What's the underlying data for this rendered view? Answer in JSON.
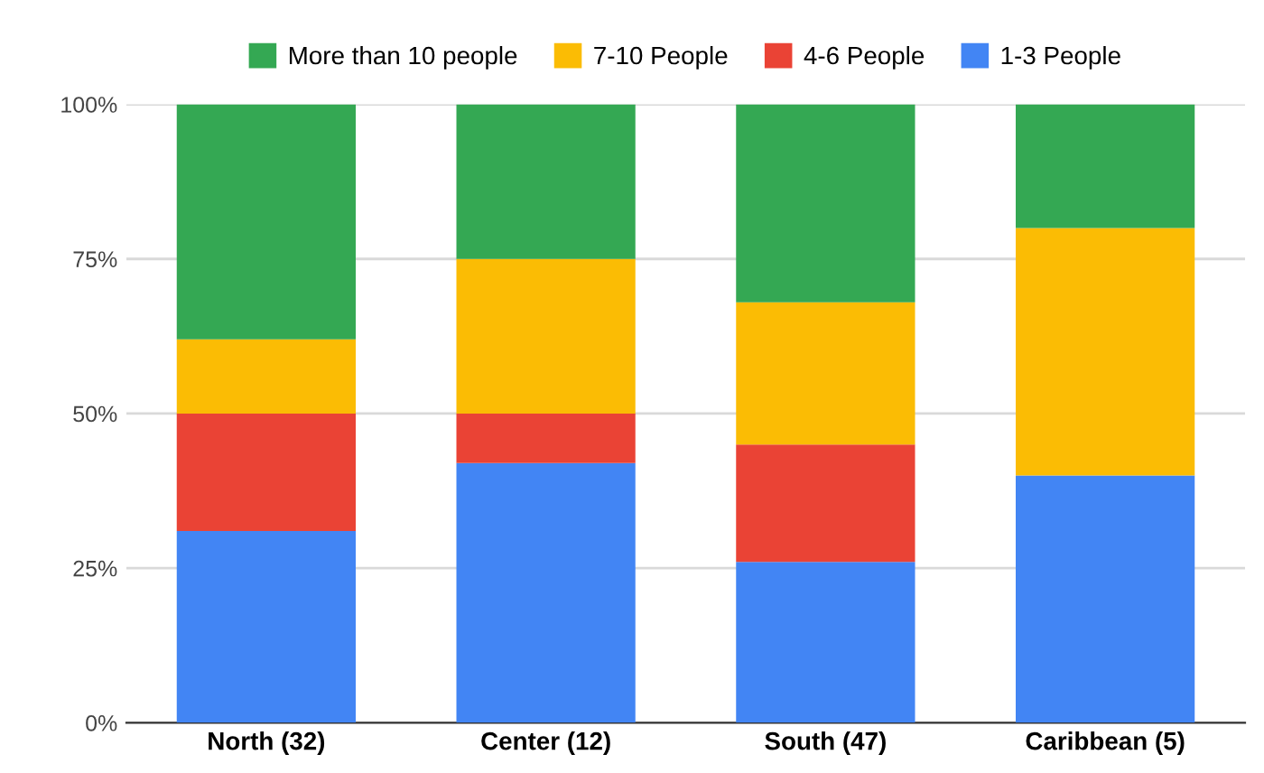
{
  "chart_data": {
    "type": "bar",
    "stacked": true,
    "categories": [
      "North (32)",
      "Center (12)",
      "South (47)",
      "Caribbean (5)"
    ],
    "series": [
      {
        "name": "1-3 People",
        "color": "#4285f4",
        "values": [
          31,
          42,
          26,
          40
        ]
      },
      {
        "name": "4-6 People",
        "color": "#ea4335",
        "values": [
          19,
          8,
          19,
          0
        ]
      },
      {
        "name": "7-10 People",
        "color": "#fbbc04",
        "values": [
          12,
          25,
          23,
          40
        ]
      },
      {
        "name": "More than 10 people",
        "color": "#34a853",
        "values": [
          38,
          25,
          32,
          20
        ]
      }
    ],
    "ylim": [
      0,
      100
    ],
    "yticks": [
      {
        "value": 0,
        "label": "0%"
      },
      {
        "value": 25,
        "label": "25%"
      },
      {
        "value": 50,
        "label": "50%"
      },
      {
        "value": 75,
        "label": "75%"
      },
      {
        "value": 100,
        "label": "100%"
      }
    ],
    "grid": "y",
    "legend": "top"
  }
}
